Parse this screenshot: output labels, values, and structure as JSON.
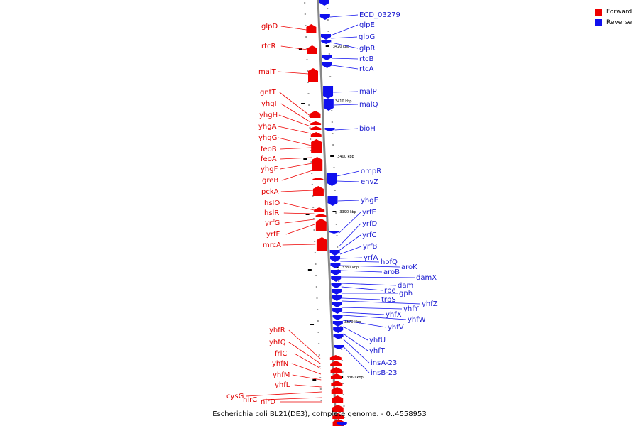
{
  "caption": "Escherichia coli BL21(DE3), complete genome. - 0..4558953",
  "legend": [
    {
      "label": "Forward",
      "color": "#ee0000"
    },
    {
      "label": "Reverse",
      "color": "#1010ee"
    }
  ],
  "colors": {
    "forward": "#ee0000",
    "reverse": "#1010ee",
    "axis": "#888888"
  },
  "ticks": [
    "3420 kbp",
    "3410 kbp",
    "3400 kbp",
    "3390 kbp",
    "3380 kbp",
    "3370 kbp",
    "3360 kbp"
  ],
  "forward_genes": [
    "glpD",
    "rtcR",
    "malT",
    "gntT",
    "yhgI",
    "yhgH",
    "yhgA",
    "yhgG",
    "feoB",
    "feoA",
    "yhgF",
    "greB",
    "pckA",
    "hslO",
    "hslR",
    "yrfG",
    "yrfF",
    "mrcA",
    "yhfR",
    "yhfQ",
    "frlC",
    "yhfN",
    "yhfM",
    "yhfL",
    "cysG",
    "nirC",
    "nirD"
  ],
  "reverse_genes": [
    "ECD_03279",
    "glpE",
    "glpG",
    "glpR",
    "rtcB",
    "rtcA",
    "malP",
    "malQ",
    "bioH",
    "ompR",
    "envZ",
    "yhgE",
    "yrfE",
    "yrfD",
    "yrfC",
    "yrfB",
    "yrfA",
    "hofQ",
    "aroK",
    "aroB",
    "damX",
    "dam",
    "rpe",
    "gph",
    "trpS",
    "yhfZ",
    "yhfY",
    "yhfX",
    "yhfW",
    "yhfV",
    "yhfU",
    "yhfT",
    "insA-23",
    "insB-23"
  ]
}
